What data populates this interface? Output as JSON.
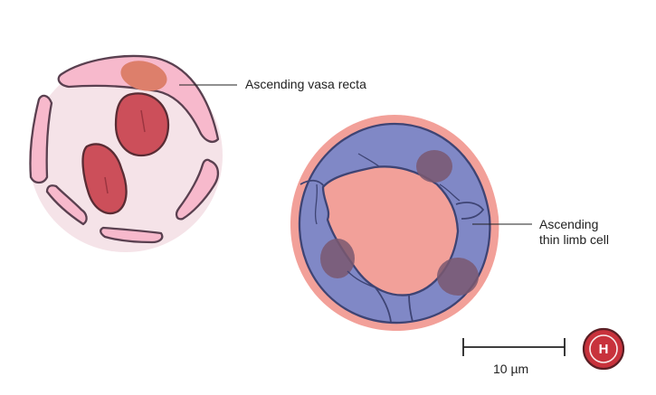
{
  "labels": {
    "vasa_recta": "Ascending vasa recta",
    "thin_limb_line1": "Ascending",
    "thin_limb_line2": "thin limb cell"
  },
  "scale_bar": {
    "text": "10 µm"
  },
  "logo": {
    "letter": "H"
  },
  "colors": {
    "vasa_bg": "#f5e3e8",
    "endothelium": "#f7b9cc",
    "rbc": "#cc4f5a",
    "nucleus_orange": "#dd7f6b",
    "outline": "#5a4050",
    "thin_limb_cell": "#8088c6",
    "thin_limb_outline": "#3e4474",
    "thin_limb_nucleus": "#7a5870",
    "basement_membrane": "#f2a099",
    "logo_red": "#c8323c"
  }
}
